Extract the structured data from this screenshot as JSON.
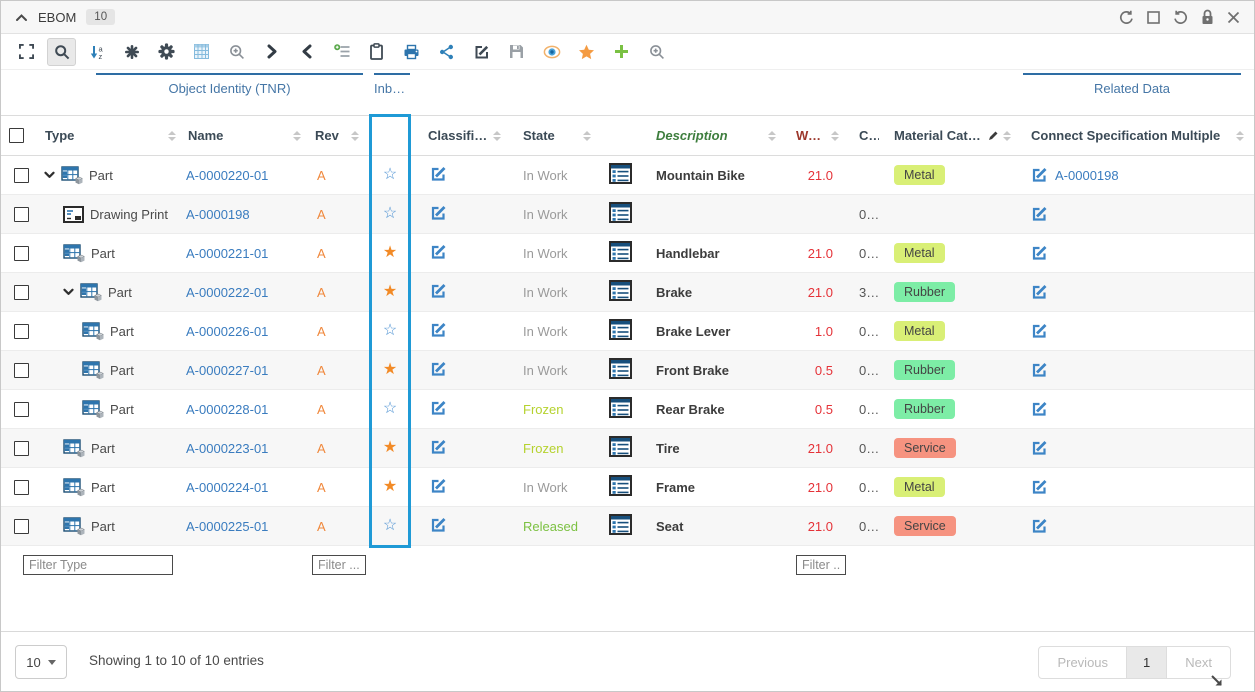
{
  "titlebar": {
    "title": "EBOM",
    "count": "10",
    "window_icons": [
      "refresh",
      "restore",
      "undo",
      "lock",
      "close"
    ]
  },
  "toolbar": {
    "active_icon": "search",
    "icons": [
      "fullscreen",
      "search",
      "sort-az",
      "asterisk",
      "settings-gear",
      "table",
      "search-plus",
      "chevron-right",
      "chevron-left",
      "add-list",
      "clipboard",
      "print",
      "share",
      "edit",
      "save",
      "eye",
      "star",
      "add-plus",
      "zoom-in"
    ]
  },
  "column_groups": [
    {
      "label": "Object Identity (TNR)"
    },
    {
      "label": "Inb…"
    },
    {
      "label": "Related Data"
    }
  ],
  "table": {
    "headers": {
      "type": "Type",
      "name": "Name",
      "rev": "Rev",
      "classification": "Classification",
      "state": "State",
      "description": "Description",
      "weight": "Weigh…",
      "c": "C…",
      "material": "Material Category",
      "connect": "Connect Specification Multiple"
    },
    "rows": [
      {
        "indent": 0,
        "expandable": true,
        "type_icon": "part",
        "type": "Part",
        "name": "A-0000220-01",
        "rev": "A",
        "starred": false,
        "state": "In Work",
        "description": "Mountain Bike",
        "weight": "21.0",
        "c": "",
        "material": "Metal",
        "connect_name": "A-0000198"
      },
      {
        "indent": 1,
        "expandable": false,
        "type_icon": "drawing",
        "type": "Drawing Print",
        "name": "A-0000198",
        "rev": "A",
        "starred": false,
        "state": "In Work",
        "description": "",
        "weight": "",
        "c": "0…",
        "material": "",
        "connect_name": ""
      },
      {
        "indent": 1,
        "expandable": false,
        "type_icon": "part",
        "type": "Part",
        "name": "A-0000221-01",
        "rev": "A",
        "starred": true,
        "state": "In Work",
        "description": "Handlebar",
        "weight": "21.0",
        "c": "0…",
        "material": "Metal",
        "connect_name": ""
      },
      {
        "indent": 1,
        "expandable": true,
        "type_icon": "part",
        "type": "Part",
        "name": "A-0000222-01",
        "rev": "A",
        "starred": true,
        "state": "In Work",
        "description": "Brake",
        "weight": "21.0",
        "c": "3…",
        "material": "Rubber",
        "connect_name": ""
      },
      {
        "indent": 2,
        "expandable": false,
        "type_icon": "part",
        "type": "Part",
        "name": "A-0000226-01",
        "rev": "A",
        "starred": false,
        "state": "In Work",
        "description": "Brake Lever",
        "weight": "1.0",
        "c": "0…",
        "material": "Metal",
        "connect_name": ""
      },
      {
        "indent": 2,
        "expandable": false,
        "type_icon": "part",
        "type": "Part",
        "name": "A-0000227-01",
        "rev": "A",
        "starred": true,
        "state": "In Work",
        "description": "Front Brake",
        "weight": "0.5",
        "c": "0…",
        "material": "Rubber",
        "connect_name": ""
      },
      {
        "indent": 2,
        "expandable": false,
        "type_icon": "part",
        "type": "Part",
        "name": "A-0000228-01",
        "rev": "A",
        "starred": false,
        "state": "Frozen",
        "description": "Rear Brake",
        "weight": "0.5",
        "c": "0…",
        "material": "Rubber",
        "connect_name": ""
      },
      {
        "indent": 1,
        "expandable": false,
        "type_icon": "part",
        "type": "Part",
        "name": "A-0000223-01",
        "rev": "A",
        "starred": true,
        "state": "Frozen",
        "description": "Tire",
        "weight": "21.0",
        "c": "0…",
        "material": "Service",
        "connect_name": ""
      },
      {
        "indent": 1,
        "expandable": false,
        "type_icon": "part",
        "type": "Part",
        "name": "A-0000224-01",
        "rev": "A",
        "starred": true,
        "state": "In Work",
        "description": "Frame",
        "weight": "21.0",
        "c": "0…",
        "material": "Metal",
        "connect_name": ""
      },
      {
        "indent": 1,
        "expandable": false,
        "type_icon": "part",
        "type": "Part",
        "name": "A-0000225-01",
        "rev": "A",
        "starred": false,
        "state": "Released",
        "description": "Seat",
        "weight": "21.0",
        "c": "0…",
        "material": "Service",
        "connect_name": ""
      }
    ]
  },
  "filters": {
    "type_placeholder": "Filter Type",
    "rev_placeholder": "Filter ...",
    "weight_placeholder": "Filter ..."
  },
  "footer": {
    "page_size": "10",
    "showing": "Showing 1 to 10 of 10 entries",
    "pagination": {
      "previous": "Previous",
      "current": "1",
      "next": "Next"
    }
  },
  "colors": {
    "badge": {
      "Metal": "#d9ef76",
      "Rubber": "#7deda6",
      "Service": "#f69380"
    },
    "state": {
      "In Work": "#9a9a9a",
      "Frozen": "#b5d22e",
      "Released": "#7cc142"
    },
    "highlight_column": "#1f9ad6",
    "link": "#3a7cbf",
    "rev_orange": "#f0883c",
    "weight_red": "#e53238",
    "star_filled": "#f28a26",
    "star_outline": "#4a90d2",
    "group_line": "#2e6da4"
  }
}
